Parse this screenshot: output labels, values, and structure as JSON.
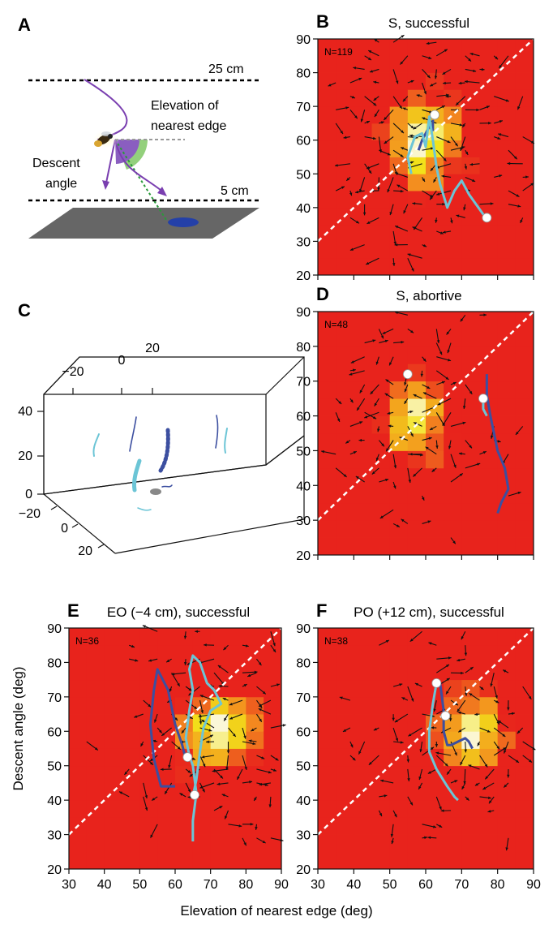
{
  "panel_a": {
    "label": "A",
    "top_line_label": "25 cm",
    "bottom_line_label": "5 cm",
    "edge_label_line1": "Elevation of",
    "edge_label_line2": "nearest edge",
    "angle_label_line1": "Descent",
    "angle_label_line2": "angle"
  },
  "panel_c": {
    "label": "C",
    "top_ticks": [
      "−20",
      "0",
      "20"
    ],
    "left_ticks": [
      "40",
      "20",
      "0"
    ],
    "bottom_ticks": [
      "−20",
      "0",
      "20"
    ]
  },
  "shared_axes": {
    "xlabel": "Elevation of nearest edge (deg)",
    "ylabel": "Descent angle (deg)",
    "xlim": [
      30,
      90
    ],
    "ylim": [
      20,
      90
    ],
    "xticks": [
      "30",
      "40",
      "50",
      "60",
      "70",
      "80",
      "90"
    ],
    "yticks": [
      "20",
      "30",
      "40",
      "50",
      "60",
      "70",
      "80",
      "90"
    ]
  },
  "colors": {
    "heat_low": "#e8231c",
    "heat_mid": "#f38a1f",
    "heat_high": "#f2e31a",
    "heat_peak": "#fbf7d8",
    "track_light": "#6cc5d6",
    "track_dark": "#3c4fa0",
    "diagonal": "#ffffff"
  },
  "chart_data": [
    {
      "id": "B",
      "type": "heatmap",
      "label": "B",
      "title": "S, successful",
      "n_label": "N=119",
      "hotspot": [
        60,
        60
      ],
      "spread": [
        9,
        11
      ],
      "diagonal": true,
      "track_light": [
        [
          56,
          50
        ],
        [
          55,
          55
        ],
        [
          57,
          61
        ],
        [
          59,
          62
        ],
        [
          60,
          58
        ],
        [
          61,
          67
        ],
        [
          62,
          60
        ],
        [
          63,
          52
        ],
        [
          64,
          47
        ],
        [
          66,
          40
        ],
        [
          68,
          45
        ],
        [
          70,
          48
        ],
        [
          72,
          44
        ],
        [
          74,
          41
        ],
        [
          76,
          38
        ],
        [
          77,
          37
        ]
      ],
      "track_dark": [
        [
          58,
          57
        ],
        [
          59,
          60
        ],
        [
          60,
          62
        ],
        [
          61,
          64
        ],
        [
          62,
          63
        ],
        [
          62,
          66
        ]
      ],
      "markers": [
        [
          62.5,
          67.5
        ],
        [
          77,
          37
        ]
      ]
    },
    {
      "id": "D",
      "type": "heatmap",
      "label": "D",
      "title": "S, abortive",
      "n_label": "N=48",
      "hotspot": [
        57,
        59
      ],
      "spread": [
        7,
        10
      ],
      "diagonal": true,
      "track_light": [
        [
          76,
          64
        ],
        [
          76,
          62
        ],
        [
          77,
          60
        ]
      ],
      "track_dark": [
        [
          77,
          72
        ],
        [
          77,
          66
        ],
        [
          78,
          60
        ],
        [
          79,
          55
        ],
        [
          80,
          50
        ],
        [
          82,
          45
        ],
        [
          83,
          39
        ],
        [
          81,
          35
        ],
        [
          80,
          32
        ]
      ],
      "markers": [
        [
          55,
          72
        ],
        [
          76,
          65
        ]
      ]
    },
    {
      "id": "E",
      "type": "heatmap",
      "label": "E",
      "title": "EO (−4 cm), successful",
      "n_label": "N=36",
      "hotspot": [
        72,
        60
      ],
      "spread": [
        9,
        10
      ],
      "diagonal": true,
      "track_light": [
        [
          65,
          28
        ],
        [
          65,
          34
        ],
        [
          66,
          42
        ],
        [
          65,
          50
        ],
        [
          64,
          53
        ],
        [
          63,
          58
        ],
        [
          64,
          66
        ],
        [
          65,
          72
        ],
        [
          64,
          78
        ],
        [
          65,
          82
        ],
        [
          67,
          80
        ],
        [
          69,
          74
        ],
        [
          71,
          72
        ],
        [
          73,
          68
        ],
        [
          70,
          66
        ],
        [
          68,
          61
        ],
        [
          67,
          54
        ],
        [
          66,
          46
        ],
        [
          65,
          41
        ]
      ],
      "track_dark": [
        [
          60,
          44
        ],
        [
          56,
          44
        ],
        [
          54,
          52
        ],
        [
          53,
          62
        ],
        [
          54,
          72
        ],
        [
          55,
          78
        ],
        [
          58,
          72
        ],
        [
          60,
          62
        ],
        [
          62,
          56
        ],
        [
          63,
          52
        ]
      ],
      "markers": [
        [
          63.5,
          52.5
        ],
        [
          65.5,
          41.5
        ]
      ]
    },
    {
      "id": "F",
      "type": "heatmap",
      "label": "F",
      "title": "PO (+12 cm), successful",
      "n_label": "N=38",
      "hotspot": [
        72,
        60
      ],
      "spread": [
        8,
        9
      ],
      "diagonal": true,
      "track_light": [
        [
          63,
          74
        ],
        [
          62,
          68
        ],
        [
          61,
          60
        ],
        [
          61,
          54
        ],
        [
          63,
          49
        ],
        [
          66,
          44
        ],
        [
          68,
          41
        ],
        [
          69,
          40
        ]
      ],
      "track_dark": [
        [
          64,
          74
        ],
        [
          65,
          66
        ],
        [
          65,
          60
        ],
        [
          66,
          56
        ],
        [
          67,
          56
        ],
        [
          69,
          57
        ],
        [
          71,
          58
        ],
        [
          72,
          57
        ],
        [
          73,
          55
        ]
      ],
      "markers": [
        [
          63,
          74
        ],
        [
          65.5,
          64.5
        ]
      ]
    }
  ]
}
